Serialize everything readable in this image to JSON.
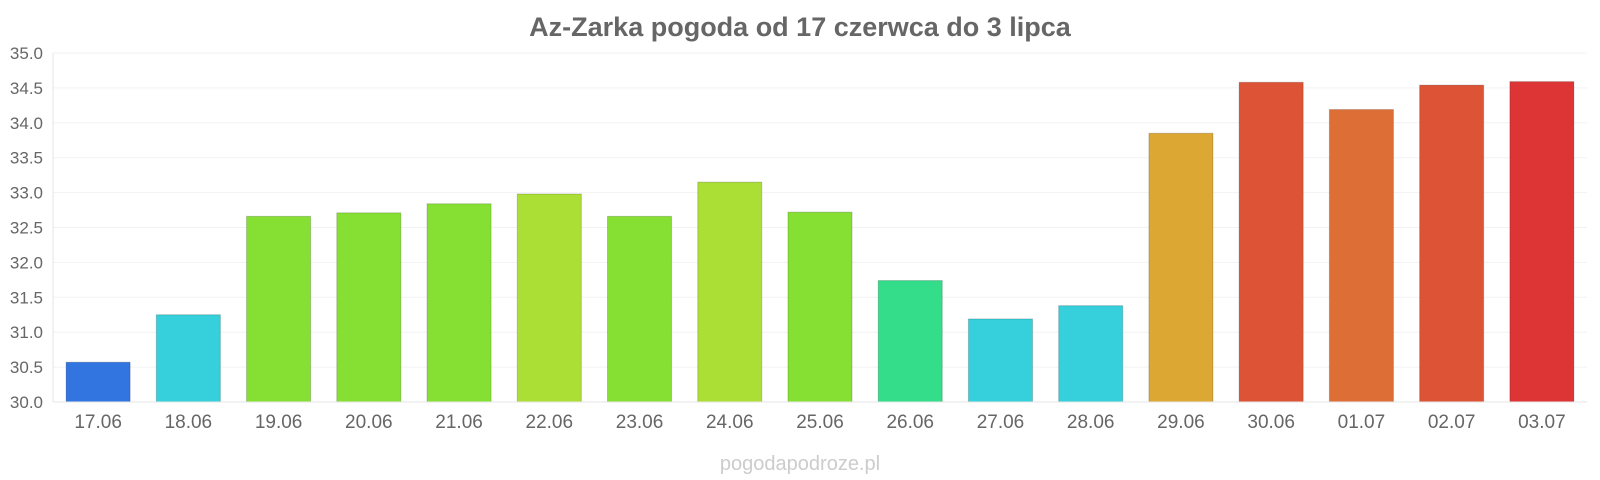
{
  "chart_data": {
    "type": "bar",
    "title": "Az-Zarka pogoda od 17 czerwca do 3 lipca",
    "xlabel": "",
    "ylabel": "",
    "ylim": [
      30.0,
      35.0
    ],
    "yticks": [
      "30.0",
      "30.5",
      "31.0",
      "31.5",
      "32.0",
      "32.5",
      "33.0",
      "33.5",
      "34.0",
      "34.5",
      "35.0"
    ],
    "grid": true,
    "categories": [
      "17.06",
      "18.06",
      "19.06",
      "20.06",
      "21.06",
      "22.06",
      "23.06",
      "24.06",
      "25.06",
      "26.06",
      "27.06",
      "28.06",
      "29.06",
      "30.06",
      "01.07",
      "02.07",
      "03.07"
    ],
    "values": [
      30.57,
      31.25,
      32.66,
      32.71,
      32.84,
      32.98,
      32.66,
      33.15,
      32.72,
      31.74,
      31.19,
      31.38,
      33.85,
      34.58,
      34.19,
      34.54,
      34.59
    ],
    "colors": [
      "#3375e0",
      "#35d0db",
      "#86e033",
      "#86e033",
      "#86e033",
      "#abdf35",
      "#86e033",
      "#abdf35",
      "#86e033",
      "#33dd8a",
      "#35d0db",
      "#35d0db",
      "#dca833",
      "#dd5335",
      "#dd6e35",
      "#dd5335",
      "#dd3535"
    ]
  },
  "watermark": "pogodapodroze.pl"
}
